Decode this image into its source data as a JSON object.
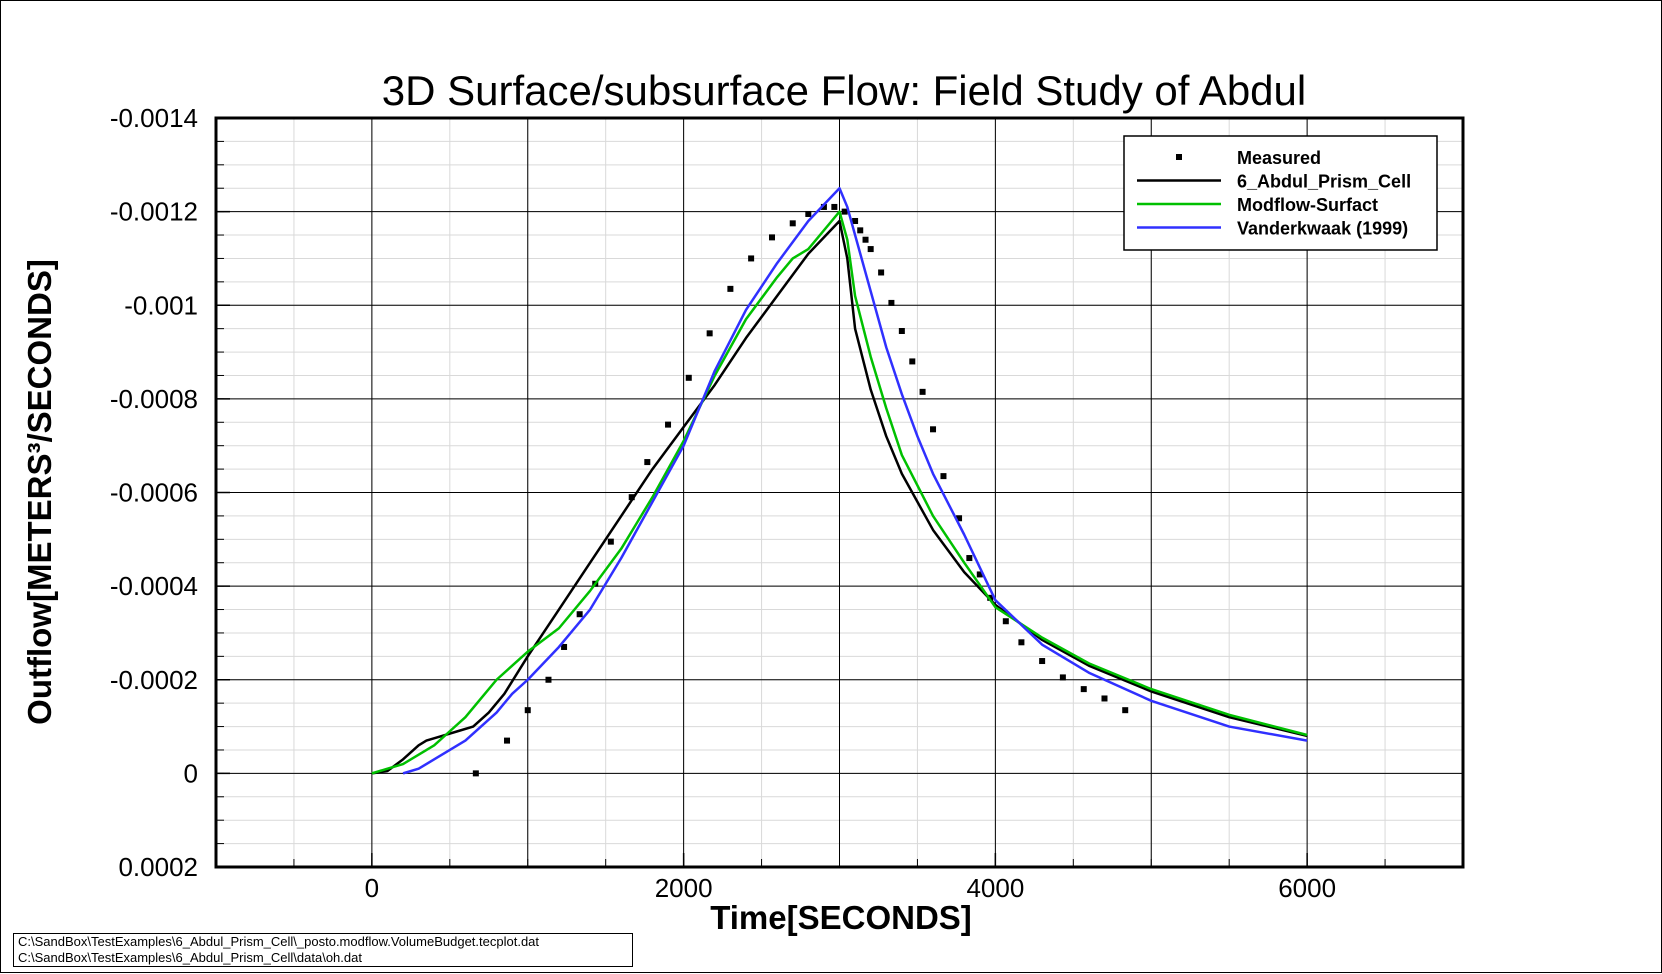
{
  "chart_data": {
    "type": "line",
    "title": "3D Surface/subsurface Flow: Field Study of Abdul",
    "xlabel": "Time[SECONDS]",
    "ylabel": "Outflow[METERS³/SECONDS]",
    "xlim": [
      -1000,
      7000
    ],
    "ylim": [
      0.0002,
      -0.0014
    ],
    "y_axis_inverted": true,
    "x_ticks": [
      0,
      2000,
      4000,
      6000
    ],
    "x_tick_labels": [
      "0",
      "2000",
      "4000",
      "6000"
    ],
    "y_ticks": [
      -0.0014,
      -0.0012,
      -0.001,
      -0.0008,
      -0.0006,
      -0.0004,
      -0.0002,
      0,
      0.0002
    ],
    "y_tick_labels": [
      "-0.0014",
      "-0.0012",
      "-0.001",
      "-0.0008",
      "-0.0006",
      "-0.0004",
      "-0.0002",
      "0",
      "0.0002"
    ],
    "grid": true,
    "legend_position": "top-right",
    "series": [
      {
        "name": "Measured",
        "style": "markers",
        "color": "#000000",
        "x": [
          667,
          867,
          1000,
          1133,
          1233,
          1333,
          1433,
          1533,
          1667,
          1767,
          1900,
          2033,
          2167,
          2300,
          2433,
          2567,
          2700,
          2800,
          2900,
          2967,
          3033,
          3100,
          3133,
          3167,
          3200,
          3267,
          3333,
          3400,
          3467,
          3533,
          3600,
          3667,
          3767,
          3833,
          3900,
          3967,
          4067,
          4167,
          4300,
          4433,
          4567,
          4700,
          4833
        ],
        "y": [
          0.0,
          -7e-05,
          -0.000135,
          -0.0002,
          -0.00027,
          -0.00034,
          -0.000405,
          -0.000495,
          -0.00059,
          -0.000665,
          -0.000745,
          -0.000845,
          -0.00094,
          -0.001035,
          -0.0011,
          -0.001145,
          -0.001175,
          -0.001195,
          -0.00121,
          -0.00121,
          -0.0012,
          -0.00118,
          -0.00116,
          -0.00114,
          -0.00112,
          -0.00107,
          -0.001005,
          -0.000945,
          -0.00088,
          -0.000815,
          -0.000735,
          -0.000635,
          -0.000545,
          -0.00046,
          -0.000425,
          -0.000375,
          -0.000325,
          -0.00028,
          -0.00024,
          -0.000205,
          -0.00018,
          -0.00016,
          -0.000135
        ]
      },
      {
        "name": "6_Abdul_Prism_Cell",
        "style": "line",
        "color": "#000000",
        "x": [
          0,
          100,
          200,
          300,
          350,
          450,
          550,
          650,
          750,
          850,
          1000,
          1200,
          1400,
          1600,
          1800,
          2000,
          2200,
          2400,
          2600,
          2800,
          3000,
          3050,
          3100,
          3200,
          3300,
          3400,
          3600,
          3800,
          4000,
          4300,
          4600,
          5000,
          5500,
          6000
        ],
        "y": [
          0,
          -5e-06,
          -3e-05,
          -6e-05,
          -7e-05,
          -8e-05,
          -9e-05,
          -0.0001,
          -0.00013,
          -0.00017,
          -0.00025,
          -0.00035,
          -0.00045,
          -0.00055,
          -0.00065,
          -0.00074,
          -0.00083,
          -0.00093,
          -0.00102,
          -0.00111,
          -0.00118,
          -0.0011,
          -0.00095,
          -0.00082,
          -0.00072,
          -0.00064,
          -0.00052,
          -0.00043,
          -0.00036,
          -0.000285,
          -0.00023,
          -0.000175,
          -0.00012,
          -8e-05
        ]
      },
      {
        "name": "Modflow-Surfact",
        "style": "line",
        "color": "#00c000",
        "x": [
          0,
          100,
          200,
          300,
          400,
          500,
          600,
          700,
          800,
          900,
          1000,
          1200,
          1400,
          1600,
          1800,
          2000,
          2200,
          2400,
          2600,
          2700,
          2800,
          3000,
          3050,
          3100,
          3200,
          3300,
          3400,
          3600,
          3800,
          4000,
          4300,
          4600,
          5000,
          5500,
          6000
        ],
        "y": [
          0,
          -1e-05,
          -2e-05,
          -4e-05,
          -6e-05,
          -9e-05,
          -0.00012,
          -0.00016,
          -0.0002,
          -0.00023,
          -0.00026,
          -0.00031,
          -0.00039,
          -0.00048,
          -0.00059,
          -0.00071,
          -0.00085,
          -0.00097,
          -0.00106,
          -0.0011,
          -0.00112,
          -0.0012,
          -0.00114,
          -0.00102,
          -0.00089,
          -0.00078,
          -0.00068,
          -0.00055,
          -0.00045,
          -0.000355,
          -0.00029,
          -0.000235,
          -0.00018,
          -0.000125,
          -8.2e-05
        ]
      },
      {
        "name": "Vanderkwaak (1999)",
        "style": "line",
        "color": "#3030ff",
        "x": [
          200,
          300,
          400,
          500,
          600,
          700,
          800,
          900,
          1000,
          1200,
          1400,
          1600,
          1800,
          2000,
          2200,
          2400,
          2600,
          2800,
          3000,
          3050,
          3100,
          3200,
          3300,
          3400,
          3500,
          3600,
          3800,
          4000,
          4300,
          4600,
          5000,
          5500,
          6000
        ],
        "y": [
          0,
          -1e-05,
          -3e-05,
          -5e-05,
          -7e-05,
          -0.0001,
          -0.00013,
          -0.00017,
          -0.0002,
          -0.00027,
          -0.00035,
          -0.00046,
          -0.00058,
          -0.0007,
          -0.00086,
          -0.00099,
          -0.00109,
          -0.00118,
          -0.00125,
          -0.00121,
          -0.00115,
          -0.00103,
          -0.00091,
          -0.00081,
          -0.00072,
          -0.00064,
          -0.00051,
          -0.00037,
          -0.000275,
          -0.000215,
          -0.000155,
          -0.0001,
          -7e-05
        ]
      }
    ]
  },
  "footer": {
    "file_line_1": "C:\\SandBox\\TestExamples\\6_Abdul_Prism_Cell\\_posto.modflow.VolumeBudget.tecplot.dat",
    "file_line_2": "C:\\SandBox\\TestExamples\\6_Abdul_Prism_Cell\\data\\oh.dat"
  }
}
